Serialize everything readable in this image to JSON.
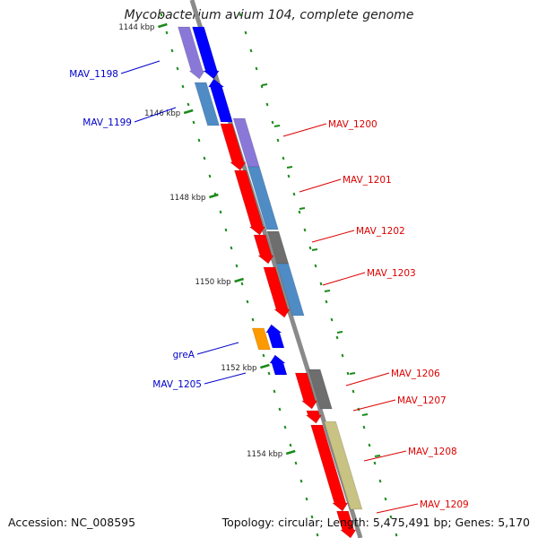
{
  "title": "Mycobacterium avium 104, complete genome",
  "accession": "Accession: NC_008595",
  "topology": "Topology: circular; Length: 5,475,491 bp; Genes: 5,170",
  "colors": {
    "backbone": "#8a8a8a",
    "tick": "#1a8a1a",
    "label_red": "#dd0000",
    "label_blue": "#0000cc",
    "red": "#ff0000",
    "blue": "#0000ff",
    "purple": "#8a78d8",
    "steelblue": "#4f8cc6",
    "gray": "#6e6e6e",
    "orange": "#ff9900",
    "khaki": "#c8c283"
  },
  "ticks": [
    "1144 kbp",
    "1146 kbp",
    "1148 kbp",
    "1150 kbp",
    "1152 kbp",
    "1154 kbp"
  ],
  "genes": [
    {
      "label": "MAV_1198",
      "side": "left"
    },
    {
      "label": "MAV_1199",
      "side": "left"
    },
    {
      "label": "MAV_1200",
      "side": "right"
    },
    {
      "label": "MAV_1201",
      "side": "right"
    },
    {
      "label": "MAV_1202",
      "side": "right"
    },
    {
      "label": "MAV_1203",
      "side": "right"
    },
    {
      "label": "greA",
      "side": "left"
    },
    {
      "label": "MAV_1205",
      "side": "left"
    },
    {
      "label": "MAV_1206",
      "side": "right"
    },
    {
      "label": "MAV_1207",
      "side": "right"
    },
    {
      "label": "MAV_1208",
      "side": "right"
    },
    {
      "label": "MAV_1209",
      "side": "right"
    }
  ]
}
